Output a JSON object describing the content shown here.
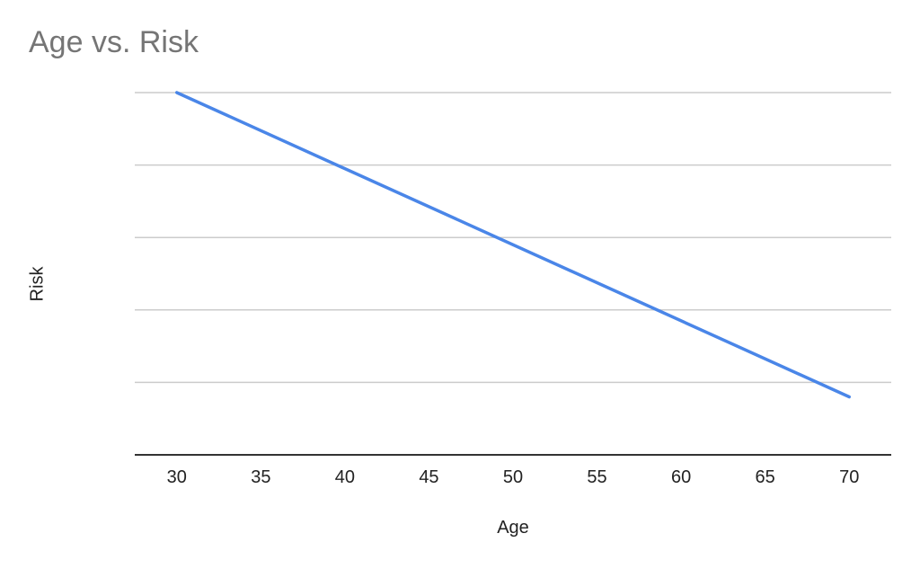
{
  "chart_data": {
    "type": "line",
    "title": "Age vs. Risk",
    "xlabel": "Age",
    "ylabel": "Risk",
    "x_ticks": [
      30,
      35,
      40,
      45,
      50,
      55,
      60,
      65,
      70
    ],
    "xlim": [
      27.5,
      72.5
    ],
    "ylim": [
      0,
      1
    ],
    "y_gridlines": [
      0.2,
      0.4,
      0.6,
      0.8,
      1.0
    ],
    "y_tick_labels_shown": false,
    "grid": true,
    "legend": "none",
    "series": [
      {
        "x": [
          30,
          70
        ],
        "y": [
          1.0,
          0.16
        ]
      }
    ],
    "colors": {
      "line": "#4a86e8",
      "grid": "#cccccc",
      "axis": "#333333",
      "title": "#757575"
    }
  }
}
